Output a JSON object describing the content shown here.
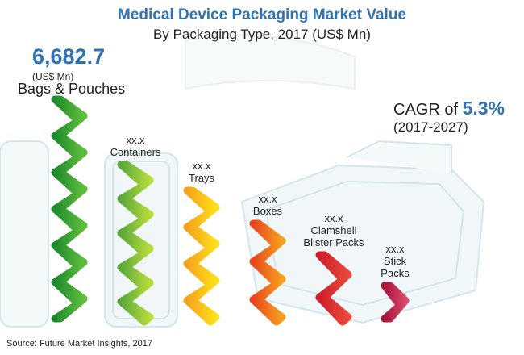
{
  "header": {
    "title": "Medical Device Packaging Market Value",
    "subtitle": "By Packaging Type, 2017 (US$ Mn)"
  },
  "highlight": {
    "value": "6,682.7",
    "unit": "(US$ Mn)"
  },
  "cagr": {
    "prefix": "CAGR of ",
    "value": "5.3%",
    "period": "(2017-2027)"
  },
  "source": "Source: Future Market Insights, 2017",
  "colors": {
    "bags": [
      "#1e8a2e",
      "#5fbf3b"
    ],
    "containers": [
      "#5aa83a",
      "#b7dc3a"
    ],
    "trays": [
      "#f4a21c",
      "#ffe11a"
    ],
    "boxes": [
      "#e8461d",
      "#f7a01e"
    ],
    "clamshell": [
      "#cf1d2a",
      "#e94a3b"
    ],
    "stick": [
      "#a8143a",
      "#d94b6d"
    ],
    "accent": "#2e74b5"
  },
  "chart_data": {
    "type": "bar",
    "title": "Medical Device Packaging Market Value",
    "subtitle": "By Packaging Type, 2017 (US$ Mn)",
    "categories": [
      "Bags & Pouches",
      "Containers",
      "Trays",
      "Boxes",
      "Clamshell Blister Packs",
      "Stick Packs"
    ],
    "category_labels": [
      [
        "Bags & Pouches"
      ],
      [
        "Containers"
      ],
      [
        "Trays"
      ],
      [
        "Boxes"
      ],
      [
        "Clamshell",
        "Blister Packs"
      ],
      [
        "Stick",
        "Packs"
      ]
    ],
    "value_labels": [
      "",
      "xx.x",
      "xx.x",
      "xx.x",
      "xx.x",
      "xx.x"
    ],
    "values": [
      6682.7,
      4700,
      3900,
      2900,
      1950,
      1000
    ],
    "unit": "US$ Mn"
  }
}
